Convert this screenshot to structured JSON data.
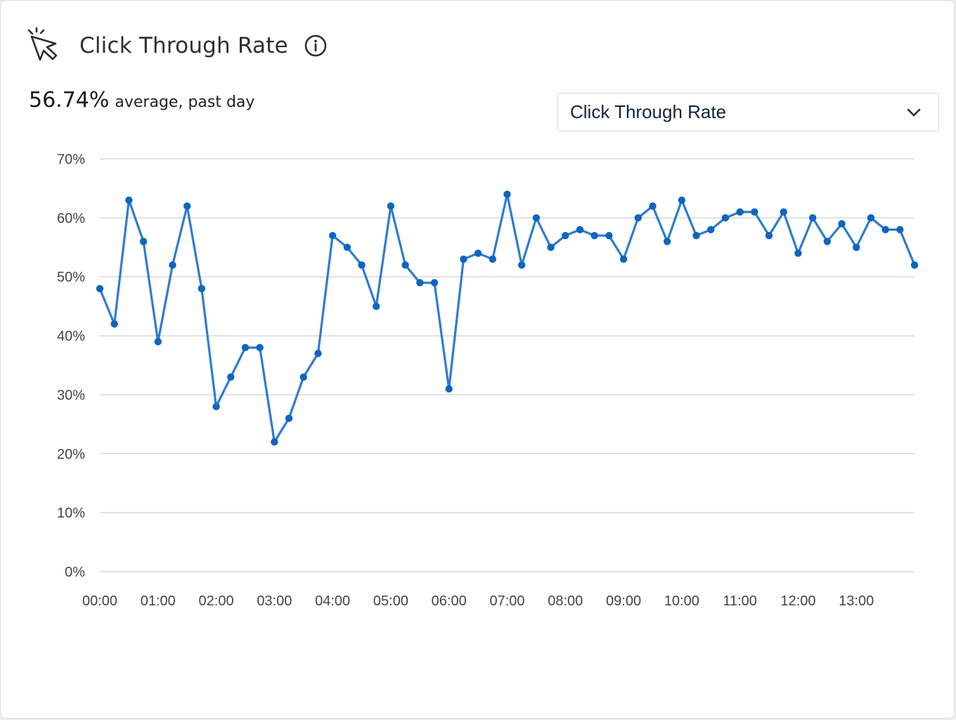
{
  "header": {
    "title": "Click Through Rate",
    "icon": "cursor-click-icon",
    "info_icon": "info-icon"
  },
  "summary": {
    "value": "56.74%",
    "caption": "average, past day"
  },
  "metric_select": {
    "selected": "Click Through Rate",
    "icon": "chevron-down-icon"
  },
  "colors": {
    "line": "#2d7cd1",
    "marker": "#0b66c3",
    "grid": "#d9d9d9"
  },
  "chart_data": {
    "type": "line",
    "ylim": [
      0,
      70
    ],
    "y_ticks": [
      "0%",
      "10%",
      "20%",
      "30%",
      "40%",
      "50%",
      "60%",
      "70%"
    ],
    "x_ticks": [
      "00:00",
      "01:00",
      "02:00",
      "03:00",
      "04:00",
      "05:00",
      "06:00",
      "07:00",
      "08:00",
      "09:00",
      "10:00",
      "11:00",
      "12:00",
      "13:00"
    ],
    "x_tick_interval_minutes": 60,
    "sample_interval_minutes": 15,
    "grid": true,
    "series": [
      {
        "values": [
          48,
          42,
          63,
          56,
          39,
          52,
          62,
          48,
          28,
          33,
          38,
          38,
          22,
          26,
          33,
          37,
          57,
          55,
          52,
          45,
          62,
          52,
          49,
          49,
          31,
          53,
          54,
          53,
          64,
          52,
          60,
          55,
          57,
          58,
          57,
          57,
          53,
          60,
          62,
          56,
          63,
          57,
          58,
          60,
          61,
          61,
          57,
          61,
          54,
          60,
          56,
          59,
          55,
          60,
          58,
          58,
          52
        ]
      }
    ]
  }
}
